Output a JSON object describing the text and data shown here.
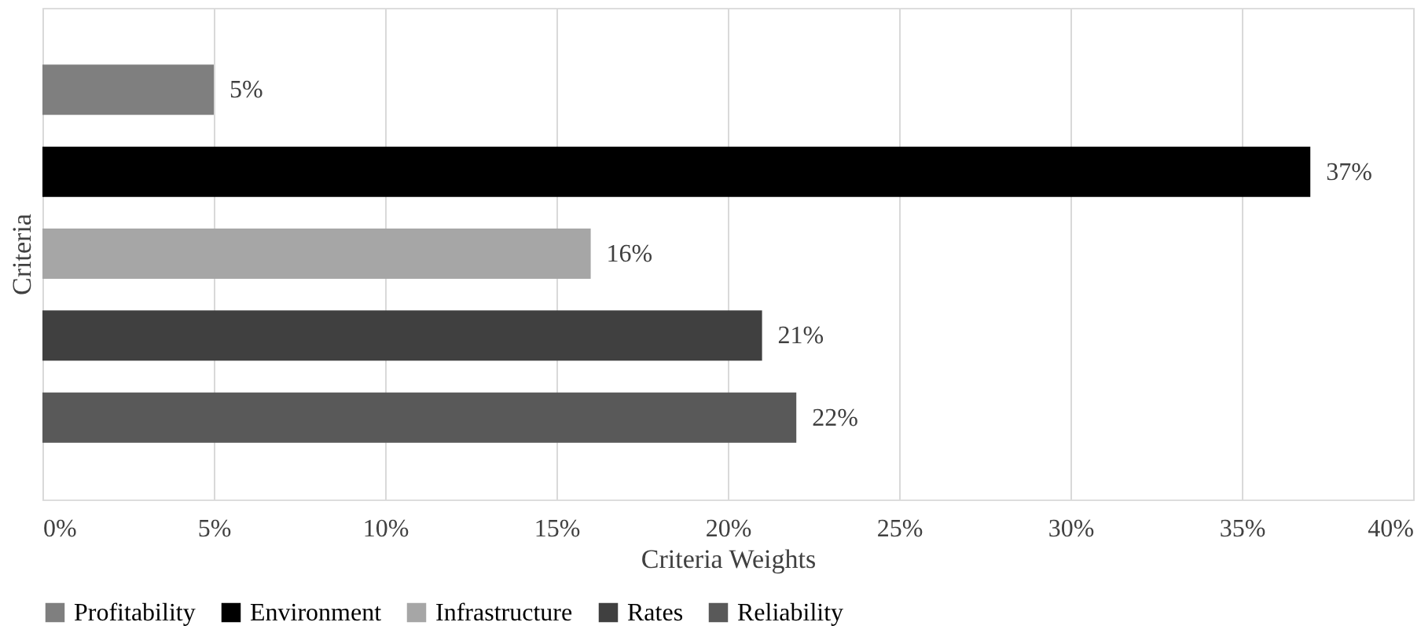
{
  "chart_data": {
    "type": "bar",
    "orientation": "horizontal",
    "xlabel": "Criteria Weights",
    "ylabel": "Criteria",
    "categories": [
      null
    ],
    "series": [
      {
        "name": "Profitability",
        "color": "#7f7f7f",
        "values": [
          5
        ],
        "value_labels": [
          "5%"
        ]
      },
      {
        "name": "Environment",
        "color": "#000000",
        "values": [
          37
        ],
        "value_labels": [
          "37%"
        ]
      },
      {
        "name": "Infrastructure",
        "color": "#a6a6a6",
        "values": [
          16
        ],
        "value_labels": [
          "16%"
        ]
      },
      {
        "name": "Rates",
        "color": "#404040",
        "values": [
          21
        ],
        "value_labels": [
          "21%"
        ]
      },
      {
        "name": "Reliability",
        "color": "#595959",
        "values": [
          22
        ],
        "value_labels": [
          "22%"
        ]
      }
    ],
    "xlim": [
      0,
      40
    ],
    "xticks": [
      {
        "value": 0,
        "label": "0%"
      },
      {
        "value": 5,
        "label": "5%"
      },
      {
        "value": 10,
        "label": "10%"
      },
      {
        "value": 15,
        "label": "15%"
      },
      {
        "value": 20,
        "label": "20%"
      },
      {
        "value": 25,
        "label": "25%"
      },
      {
        "value": 30,
        "label": "30%"
      },
      {
        "value": 35,
        "label": "35%"
      },
      {
        "value": 40,
        "label": "40%"
      }
    ],
    "grid": "x",
    "legend": "bottom"
  }
}
